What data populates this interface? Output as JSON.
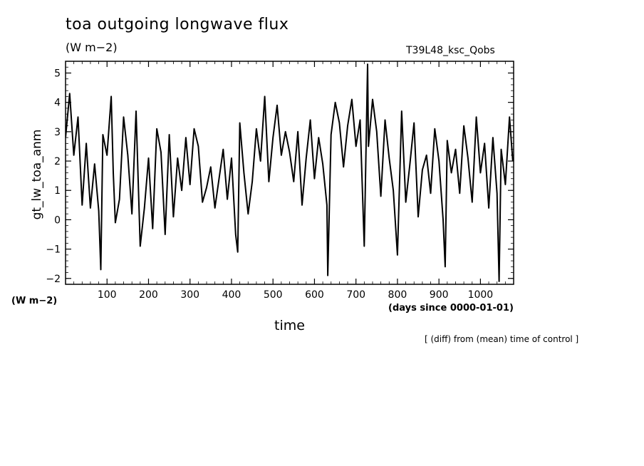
{
  "chart_data": {
    "type": "line",
    "title": "toa outgoing longwave flux",
    "units_label": "(W m−2)",
    "experiment_label": "T39L48_ksc_Qobs",
    "xlabel": "time",
    "x_units": "(days since 0000-01-01)",
    "ylabel": "gt_lw_toa_anm",
    "y_units": "(W m−2)",
    "note": "[ (diff) from (mean) time of control ]",
    "xlim": [
      0,
      1080
    ],
    "ylim": [
      -2.2,
      5.4
    ],
    "xticks": [
      100,
      200,
      300,
      400,
      500,
      600,
      700,
      800,
      900,
      1000
    ],
    "yticks": [
      -2,
      -1,
      0,
      1,
      2,
      3,
      4,
      5
    ],
    "ytick_labels": [
      "−2",
      "−1",
      "0",
      "1",
      "2",
      "3",
      "4",
      "5"
    ],
    "series": [
      {
        "x": [
          0,
          10,
          20,
          30,
          40,
          50,
          60,
          70,
          80,
          85,
          90,
          100,
          110,
          115,
          120,
          130,
          140,
          150,
          160,
          170,
          180,
          190,
          200,
          210,
          220,
          230,
          240,
          250,
          260,
          270,
          280,
          290,
          300,
          310,
          320,
          330,
          340,
          350,
          360,
          370,
          380,
          390,
          400,
          410,
          415,
          420,
          430,
          440,
          450,
          460,
          470,
          480,
          490,
          500,
          510,
          520,
          530,
          540,
          550,
          560,
          570,
          580,
          590,
          600,
          610,
          620,
          630,
          632,
          640,
          650,
          660,
          670,
          680,
          690,
          700,
          710,
          720,
          728,
          730,
          740,
          750,
          760,
          770,
          780,
          790,
          800,
          810,
          820,
          830,
          840,
          850,
          860,
          870,
          880,
          890,
          900,
          910,
          915,
          920,
          930,
          940,
          950,
          960,
          970,
          980,
          990,
          1000,
          1010,
          1020,
          1030,
          1040,
          1045,
          1050,
          1060,
          1070,
          1078
        ],
        "y": [
          2.8,
          4.3,
          2.2,
          3.5,
          0.5,
          2.6,
          0.4,
          1.9,
          0.3,
          -1.7,
          2.9,
          2.2,
          4.2,
          1.6,
          -0.1,
          0.7,
          3.5,
          2.2,
          0.2,
          3.7,
          -0.9,
          0.4,
          2.1,
          -0.3,
          3.1,
          2.3,
          -0.5,
          2.9,
          0.1,
          2.1,
          1.0,
          2.8,
          1.2,
          3.1,
          2.5,
          0.6,
          1.1,
          1.8,
          0.4,
          1.4,
          2.4,
          0.7,
          2.1,
          -0.5,
          -1.1,
          3.3,
          1.6,
          0.2,
          1.3,
          3.1,
          2.0,
          4.2,
          1.3,
          2.8,
          3.9,
          2.2,
          3.0,
          2.3,
          1.3,
          3.0,
          0.5,
          2.1,
          3.4,
          1.4,
          2.8,
          1.9,
          0.5,
          -1.9,
          2.9,
          4.0,
          3.3,
          1.8,
          3.2,
          4.1,
          2.5,
          3.4,
          -0.9,
          5.3,
          2.5,
          4.1,
          3.0,
          0.8,
          3.4,
          2.1,
          1.0,
          -1.2,
          3.7,
          0.6,
          1.9,
          3.3,
          0.1,
          1.7,
          2.2,
          0.9,
          3.1,
          2.0,
          0.0,
          -1.6,
          2.7,
          1.6,
          2.4,
          0.9,
          3.2,
          2.1,
          0.6,
          3.5,
          1.6,
          2.6,
          0.4,
          2.8,
          0.9,
          -2.1,
          2.4,
          1.2,
          3.5,
          2.0
        ]
      }
    ]
  }
}
